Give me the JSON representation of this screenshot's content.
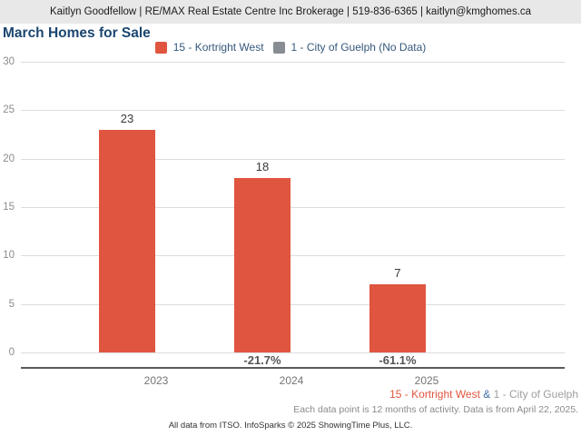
{
  "header": {
    "text": "Kaitlyn Goodfellow | RE/MAX Real Estate Centre Inc Brokerage | 519-836-6365 | kaitlyn@kmghomes.ca"
  },
  "title": "March Homes for Sale",
  "legend": [
    {
      "label": "15 - Kortright West",
      "color": "#e0553f"
    },
    {
      "label": "1 - City of Guelph (No Data)",
      "color": "#878d92"
    }
  ],
  "chart_data": {
    "type": "bar",
    "title": "March Homes for Sale",
    "categories": [
      "2023",
      "2024",
      "2025"
    ],
    "series": [
      {
        "name": "15 - Kortright West",
        "color": "#e0553f",
        "values": [
          23,
          18,
          7
        ],
        "pct_change": [
          null,
          "-21.7%",
          "-61.1%"
        ]
      },
      {
        "name": "1 - City of Guelph",
        "color": "#878d92",
        "values": [
          null,
          null,
          null
        ],
        "note": "No Data"
      }
    ],
    "ylim": [
      0,
      30
    ],
    "yticks": [
      0,
      5,
      10,
      15,
      20,
      25,
      30
    ],
    "grid": true,
    "legend_position": "top"
  },
  "footer": {
    "series_note": {
      "red": "15 - Kortright West",
      "amp": " & ",
      "gray": "1 - City of Guelph"
    },
    "data_note": "Each data point is 12 months of activity. Data is from April 22, 2025.",
    "attribution": "All data from ITSO. InfoSparks © 2025 ShowingTime Plus, LLC."
  },
  "colors": {
    "bar_red": "#e0553f",
    "no_data_gray": "#878d92",
    "title_blue": "#1b4670",
    "legend_text_blue": "#35587c",
    "ampersand_blue": "#3f6fa5",
    "footer_guelph_gray": "#9e9e9e",
    "grid_line": "#dcdcdc",
    "axis_line": "#5a5a5a",
    "y_tick_gray": "#8c8c8c",
    "x_tick_gray": "#757575",
    "value_label": "#3a3a3a",
    "pct_label": "#555555",
    "header_bg": "#e8e8e8",
    "header_text": "#1a1a1a",
    "note_gray": "#8a8a8a",
    "attribution_text": "#333333"
  }
}
